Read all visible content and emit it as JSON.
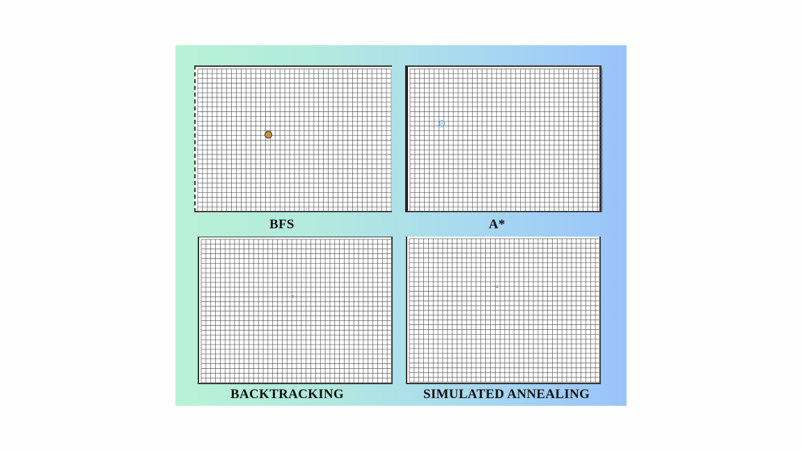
{
  "panels": [
    {
      "id": "bfs",
      "label": "BFS",
      "marker_color": "#c8903a"
    },
    {
      "id": "astar",
      "label": "A*",
      "marker_color": "#6aa8d8"
    },
    {
      "id": "backtracking",
      "label": "BACKTRACKING",
      "marker_color": "#9a9a9a"
    },
    {
      "id": "simulated-annealing",
      "label": "SIMULATED ANNEALING",
      "marker_color": "#b0b0b0"
    }
  ],
  "grid": {
    "columns": 40,
    "rows": 30,
    "line_color": "#555555"
  },
  "background": {
    "gradient_start": "#b8f2d4",
    "gradient_end": "#99c3fa",
    "page": "#fefefe"
  }
}
